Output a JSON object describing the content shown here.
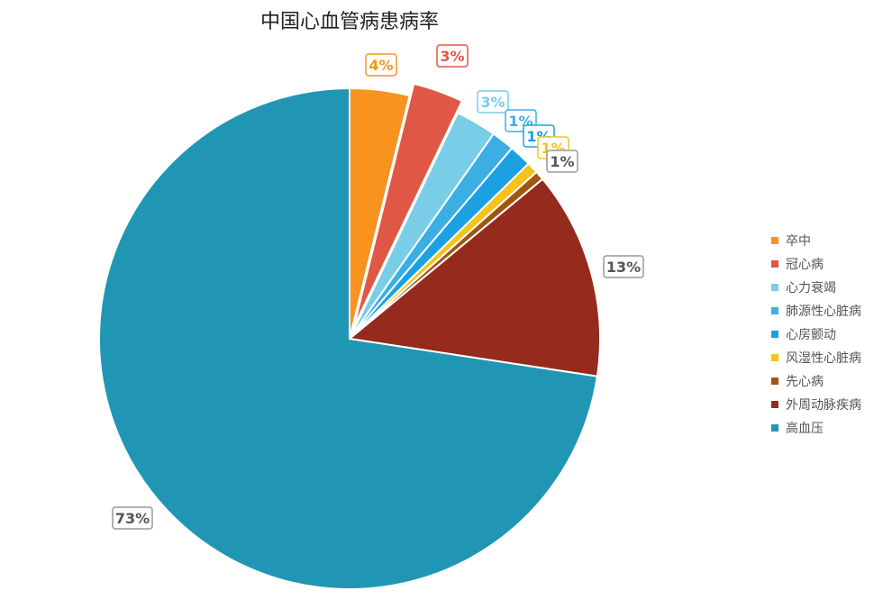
{
  "chart_data": {
    "type": "pie",
    "title": "中国心血管病患病率",
    "legend_position": "right",
    "slices": [
      {
        "name": "卒中",
        "value": 3.85,
        "label": "4%",
        "color": "#F7931E",
        "exploded": false
      },
      {
        "name": "冠心病",
        "value": 3.26,
        "label": "3%",
        "color": "#E05845",
        "exploded": true
      },
      {
        "name": "心力衰竭",
        "value": 2.64,
        "label": "3%",
        "color": "#79CDE6",
        "exploded": false
      },
      {
        "name": "肺源性心脏病",
        "value": 1.48,
        "label": "1%",
        "color": "#3BAFE3",
        "exploded": false
      },
      {
        "name": "心房颤动",
        "value": 1.44,
        "label": "1%",
        "color": "#1BA1E2",
        "exploded": false
      },
      {
        "name": "风湿性心脏病",
        "value": 0.74,
        "label": "1%",
        "color": "#F8C21C",
        "exploded": false
      },
      {
        "name": "先心病",
        "value": 0.59,
        "label": "1%",
        "color": "#A0560F",
        "exploded": false
      },
      {
        "name": "外周动脉疾病",
        "value": 13.4,
        "label": "13%",
        "color": "#962A1C",
        "exploded": false
      },
      {
        "name": "高血压",
        "value": 72.6,
        "label": "73%",
        "color": "#2196B4",
        "exploded": false
      }
    ]
  }
}
